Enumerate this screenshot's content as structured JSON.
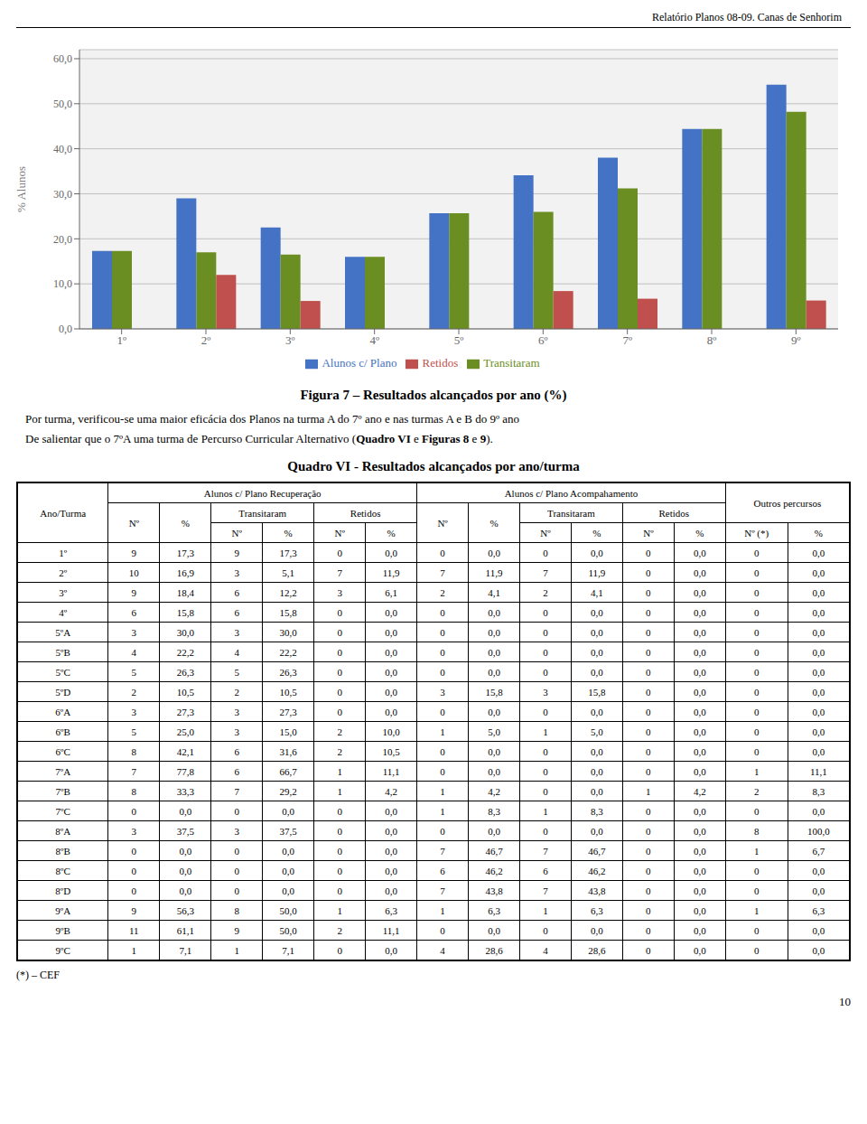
{
  "header_text": "Relatório Planos 08-09. Canas de Senhorim",
  "chart_data": {
    "type": "bar",
    "categories": [
      "1º",
      "2º",
      "3º",
      "4º",
      "5º",
      "6º",
      "7º",
      "8º",
      "9º"
    ],
    "series": [
      {
        "name": "Alunos c/ Plano",
        "color": "#4472C4",
        "values": [
          17.3,
          29.0,
          22.5,
          16.0,
          25.7,
          34.1,
          38.0,
          44.4,
          54.2
        ]
      },
      {
        "name": "Transitaram",
        "color": "#6B8E23",
        "values": [
          17.3,
          17.0,
          16.5,
          16.0,
          25.7,
          26.0,
          31.2,
          44.4,
          48.2
        ]
      },
      {
        "name": "Retidos",
        "color": "#C0504D",
        "values": [
          0.0,
          12.0,
          6.2,
          0.0,
          0.0,
          8.4,
          6.7,
          0.0,
          6.3
        ]
      }
    ],
    "y_label": "% Alunos",
    "ylim": [
      0,
      62
    ],
    "yticks": [
      {
        "value": 0,
        "label": "0,0"
      },
      {
        "value": 10,
        "label": "10,0"
      },
      {
        "value": 20,
        "label": "20,0"
      },
      {
        "value": 30,
        "label": "30,0"
      },
      {
        "value": 40,
        "label": "40,0"
      },
      {
        "value": 50,
        "label": "50,0"
      },
      {
        "value": 60,
        "label": "60,0"
      }
    ],
    "grid": true,
    "legend": "bottom"
  },
  "caption": "Figura 7 – Resultados alcançados por ano (%)",
  "text1": "Por turma, verificou-se uma maior eficácia dos Planos na turma A do 7º ano e nas turmas A e B do 9º ano",
  "text2_parts": [
    {
      "text": "De salientar que o 7ºA uma turma de Percurso Curricular Alternativo (",
      "bold": false
    },
    {
      "text": "Quadro VI",
      "bold": true
    },
    {
      "text": " e ",
      "bold": false
    },
    {
      "text": "Figuras 8",
      "bold": true
    },
    {
      "text": " e ",
      "bold": false
    },
    {
      "text": "9",
      "bold": true
    },
    {
      "text": ").",
      "bold": false
    }
  ],
  "table": {
    "title": "Quadro VI - Resultados alcançados por ano/turma",
    "header": [
      [
        {
          "text": "Ano/Turma",
          "rowspan": 3
        },
        {
          "text": "Alunos c/ Plano Recuperação",
          "colspan": 6
        },
        {
          "text": "Alunos c/ Plano Acompahamento",
          "colspan": 6
        },
        {
          "text": "Outros percursos",
          "colspan": 2,
          "rowspan": 2
        }
      ],
      [
        {
          "text": "Nº",
          "rowspan": 2
        },
        {
          "text": "%",
          "rowspan": 2
        },
        {
          "text": "Transitaram",
          "colspan": 2
        },
        {
          "text": "Retidos",
          "colspan": 2
        },
        {
          "text": "Nº",
          "rowspan": 2
        },
        {
          "text": "%",
          "rowspan": 2
        },
        {
          "text": "Transitaram",
          "colspan": 2
        },
        {
          "text": "Retidos",
          "colspan": 2
        }
      ],
      [
        {
          "text": "Nº"
        },
        {
          "text": "%"
        },
        {
          "text": "Nº"
        },
        {
          "text": "%"
        },
        {
          "text": "Nº"
        },
        {
          "text": "%"
        },
        {
          "text": "Nº"
        },
        {
          "text": "%"
        },
        {
          "text": "Nº (*)"
        },
        {
          "text": "%"
        }
      ]
    ],
    "rows": [
      [
        "1º",
        "9",
        "17,3",
        "9",
        "17,3",
        "0",
        "0,0",
        "0",
        "0,0",
        "0",
        "0,0",
        "0",
        "0,0",
        "0",
        "0,0"
      ],
      [
        "2º",
        "10",
        "16,9",
        "3",
        "5,1",
        "7",
        "11,9",
        "7",
        "11,9",
        "7",
        "11,9",
        "0",
        "0,0",
        "0",
        "0,0"
      ],
      [
        "3º",
        "9",
        "18,4",
        "6",
        "12,2",
        "3",
        "6,1",
        "2",
        "4,1",
        "2",
        "4,1",
        "0",
        "0,0",
        "0",
        "0,0"
      ],
      [
        "4º",
        "6",
        "15,8",
        "6",
        "15,8",
        "0",
        "0,0",
        "0",
        "0,0",
        "0",
        "0,0",
        "0",
        "0,0",
        "0",
        "0,0"
      ],
      [
        "5ºA",
        "3",
        "30,0",
        "3",
        "30,0",
        "0",
        "0,0",
        "0",
        "0,0",
        "0",
        "0,0",
        "0",
        "0,0",
        "0",
        "0,0"
      ],
      [
        "5ºB",
        "4",
        "22,2",
        "4",
        "22,2",
        "0",
        "0,0",
        "0",
        "0,0",
        "0",
        "0,0",
        "0",
        "0,0",
        "0",
        "0,0"
      ],
      [
        "5ºC",
        "5",
        "26,3",
        "5",
        "26,3",
        "0",
        "0,0",
        "0",
        "0,0",
        "0",
        "0,0",
        "0",
        "0,0",
        "0",
        "0,0"
      ],
      [
        "5ºD",
        "2",
        "10,5",
        "2",
        "10,5",
        "0",
        "0,0",
        "3",
        "15,8",
        "3",
        "15,8",
        "0",
        "0,0",
        "0",
        "0,0"
      ],
      [
        "6ºA",
        "3",
        "27,3",
        "3",
        "27,3",
        "0",
        "0,0",
        "0",
        "0,0",
        "0",
        "0,0",
        "0",
        "0,0",
        "0",
        "0,0"
      ],
      [
        "6ºB",
        "5",
        "25,0",
        "3",
        "15,0",
        "2",
        "10,0",
        "1",
        "5,0",
        "1",
        "5,0",
        "0",
        "0,0",
        "0",
        "0,0"
      ],
      [
        "6ºC",
        "8",
        "42,1",
        "6",
        "31,6",
        "2",
        "10,5",
        "0",
        "0,0",
        "0",
        "0,0",
        "0",
        "0,0",
        "0",
        "0,0"
      ],
      [
        "7ºA",
        "7",
        "77,8",
        "6",
        "66,7",
        "1",
        "11,1",
        "0",
        "0,0",
        "0",
        "0,0",
        "0",
        "0,0",
        "1",
        "11,1"
      ],
      [
        "7ºB",
        "8",
        "33,3",
        "7",
        "29,2",
        "1",
        "4,2",
        "1",
        "4,2",
        "0",
        "0,0",
        "1",
        "4,2",
        "2",
        "8,3"
      ],
      [
        "7ºC",
        "0",
        "0,0",
        "0",
        "0,0",
        "0",
        "0,0",
        "1",
        "8,3",
        "1",
        "8,3",
        "0",
        "0,0",
        "0",
        "0,0"
      ],
      [
        "8ºA",
        "3",
        "37,5",
        "3",
        "37,5",
        "0",
        "0,0",
        "0",
        "0,0",
        "0",
        "0,0",
        "0",
        "0,0",
        "8",
        "100,0"
      ],
      [
        "8ºB",
        "0",
        "0,0",
        "0",
        "0,0",
        "0",
        "0,0",
        "7",
        "46,7",
        "7",
        "46,7",
        "0",
        "0,0",
        "1",
        "6,7"
      ],
      [
        "8ºC",
        "0",
        "0,0",
        "0",
        "0,0",
        "0",
        "0,0",
        "6",
        "46,2",
        "6",
        "46,2",
        "0",
        "0,0",
        "0",
        "0,0"
      ],
      [
        "8ºD",
        "0",
        "0,0",
        "0",
        "0,0",
        "0",
        "0,0",
        "7",
        "43,8",
        "7",
        "43,8",
        "0",
        "0,0",
        "0",
        "0,0"
      ],
      [
        "9ºA",
        "9",
        "56,3",
        "8",
        "50,0",
        "1",
        "6,3",
        "1",
        "6,3",
        "1",
        "6,3",
        "0",
        "0,0",
        "1",
        "6,3"
      ],
      [
        "9ºB",
        "11",
        "61,1",
        "9",
        "50,0",
        "2",
        "11,1",
        "0",
        "0,0",
        "0",
        "0,0",
        "0",
        "0,0",
        "0",
        "0,0"
      ],
      [
        "9ºC",
        "1",
        "7,1",
        "1",
        "7,1",
        "0",
        "0,0",
        "4",
        "28,6",
        "4",
        "28,6",
        "0",
        "0,0",
        "0",
        "0,0"
      ]
    ]
  },
  "footer_note": "(*) – CEF",
  "page_number": "10"
}
